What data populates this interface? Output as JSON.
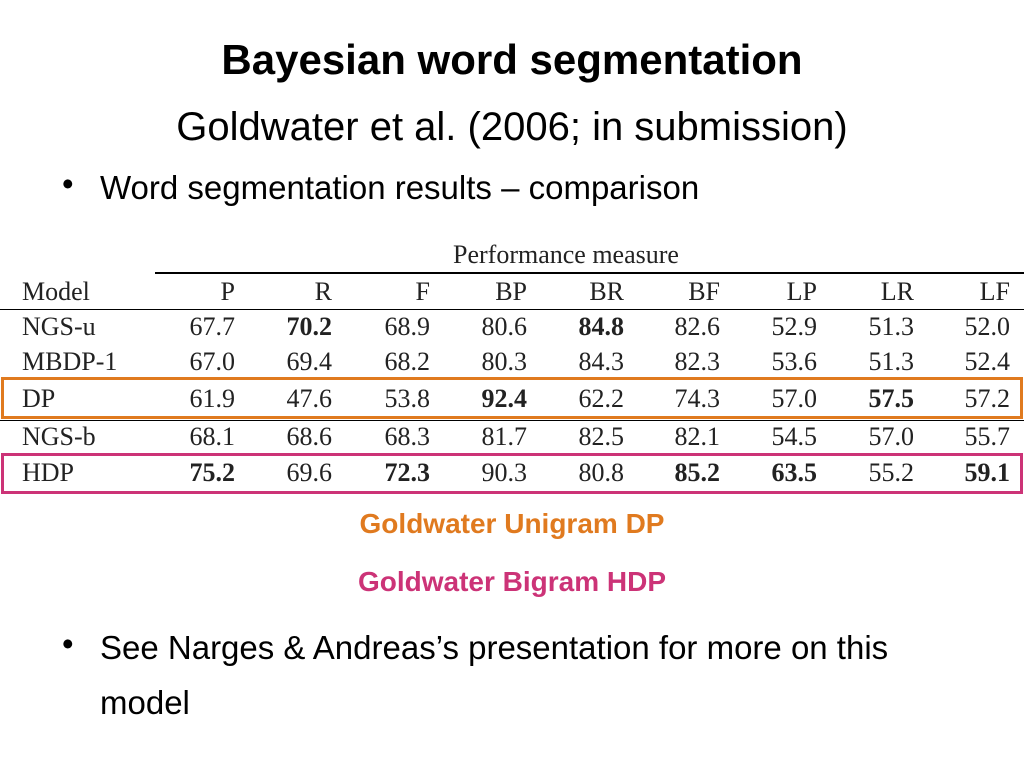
{
  "title": "Bayesian word segmentation",
  "subtitle": "Goldwater et al. (2006; in submission)",
  "bullets": [
    "Word segmentation results – comparison",
    "See Narges & Andreas’s presentation for more on this model"
  ],
  "table": {
    "group_header": "Performance measure",
    "columns": [
      "Model",
      "P",
      "R",
      "F",
      "BP",
      "BR",
      "BF",
      "LP",
      "LR",
      "LF"
    ],
    "rows": [
      [
        "NGS-u",
        "67.7",
        "70.2",
        "68.9",
        "80.6",
        "84.8",
        "82.6",
        "52.9",
        "51.3",
        "52.0"
      ],
      [
        "MBDP-1",
        "67.0",
        "69.4",
        "68.2",
        "80.3",
        "84.3",
        "82.3",
        "53.6",
        "51.3",
        "52.4"
      ],
      [
        "DP",
        "61.9",
        "47.6",
        "53.8",
        "92.4",
        "62.2",
        "74.3",
        "57.0",
        "57.5",
        "57.2"
      ],
      [
        "NGS-b",
        "68.1",
        "68.6",
        "68.3",
        "81.7",
        "82.5",
        "82.1",
        "54.5",
        "57.0",
        "55.7"
      ],
      [
        "HDP",
        "75.2",
        "69.6",
        "72.3",
        "90.3",
        "80.8",
        "85.2",
        "63.5",
        "55.2",
        "59.1"
      ]
    ],
    "bold": [
      [
        2,
        5
      ],
      [],
      [
        4,
        8
      ],
      [],
      [
        1,
        3,
        6,
        7,
        9
      ]
    ]
  },
  "captions": [
    "Goldwater Unigram DP",
    "Goldwater Bigram HDP"
  ]
}
